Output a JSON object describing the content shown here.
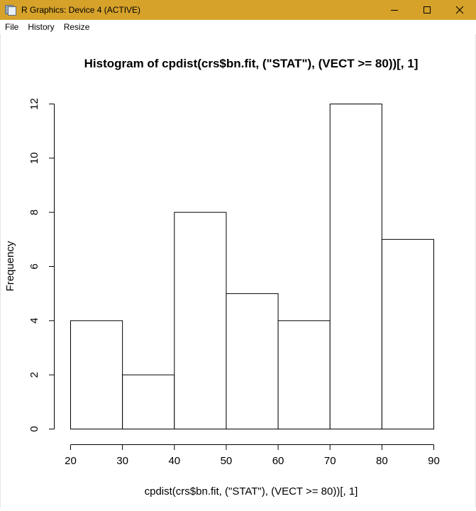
{
  "window": {
    "title": "R Graphics: Device 4 (ACTIVE)",
    "controls": [
      "minimize-icon",
      "maximize-icon",
      "close-icon"
    ]
  },
  "menu": {
    "items": [
      "File",
      "History",
      "Resize"
    ]
  },
  "colors": {
    "titlebar": "#d6a22a",
    "bar_fill": "#ffffff",
    "bar_stroke": "#000000"
  },
  "chart_data": {
    "type": "bar",
    "title": "Histogram of cpdist(crs$bn.fit, (\"STAT\"), (VECT >= 80))[, 1]",
    "xlabel": "cpdist(crs$bn.fit, (\"STAT\"), (VECT >= 80))[, 1]",
    "ylabel": "Frequency",
    "bins": [
      [
        20,
        30
      ],
      [
        30,
        40
      ],
      [
        40,
        50
      ],
      [
        50,
        60
      ],
      [
        60,
        70
      ],
      [
        70,
        80
      ],
      [
        80,
        90
      ]
    ],
    "values": [
      4,
      2,
      8,
      5,
      4,
      12,
      7
    ],
    "xlim": [
      20,
      90
    ],
    "ylim": [
      0,
      12
    ],
    "x_ticks": [
      20,
      30,
      40,
      50,
      60,
      70,
      80,
      90
    ],
    "y_ticks": [
      0,
      2,
      4,
      6,
      8,
      10,
      12
    ],
    "grid": false
  }
}
